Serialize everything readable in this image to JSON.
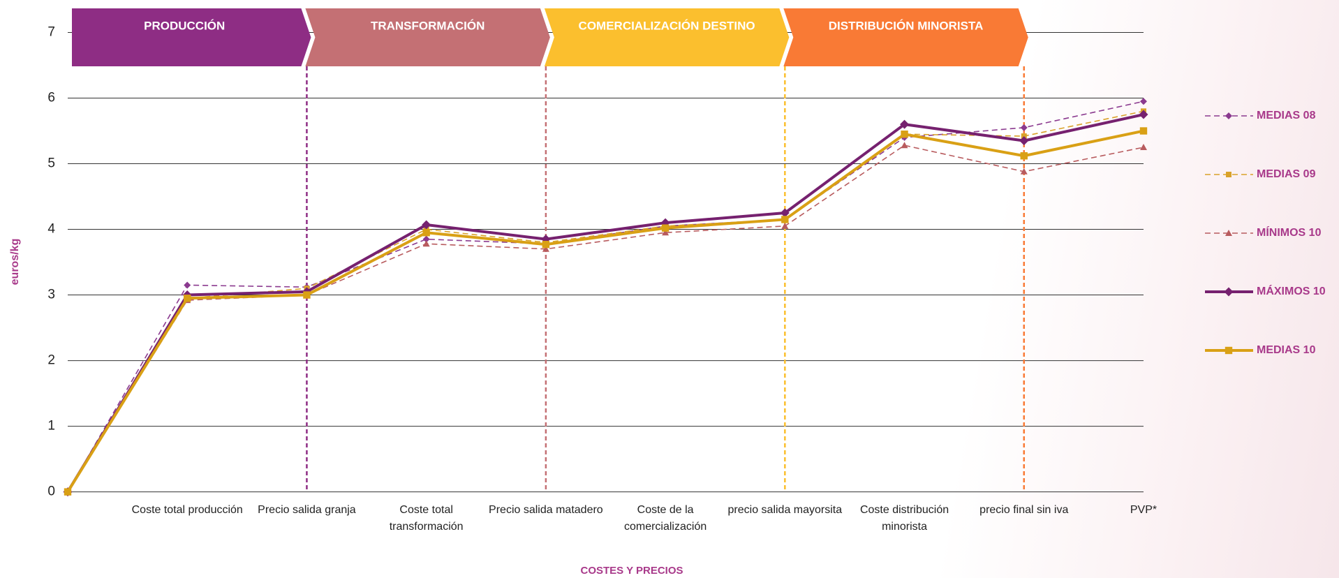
{
  "chart_data": {
    "type": "line",
    "ylabel": "euros/kg",
    "xlabel": "COSTES Y PRECIOS",
    "stages": [
      {
        "name": "PRODUCCIÓN",
        "color": "#8e2d84"
      },
      {
        "name": "TRANSFORMACIÓN",
        "color": "#c47074"
      },
      {
        "name": "COMERCIALIZACIÓN DESTINO",
        "color": "#fbbf2e"
      },
      {
        "name": "DISTRIBUCIÓN MINORISTA",
        "color": "#f97a35"
      }
    ],
    "categories": [
      null,
      "Coste total producción",
      "Precio salida granja",
      "Coste total transformación",
      "Precio salida matadero",
      "Coste de la comercialización",
      "precio salida mayorsita",
      "Coste distribución minorista",
      "precio final sin iva",
      "PVP*"
    ],
    "series": [
      {
        "name": "MEDIAS 08",
        "color": "#8b3a8f",
        "dashed": true,
        "marker": "diamond",
        "values": [
          0,
          3.15,
          3.12,
          3.85,
          3.78,
          4.05,
          4.15,
          5.4,
          5.55,
          5.95
        ]
      },
      {
        "name": "MEDIAS 09",
        "color": "#d9a22a",
        "dashed": true,
        "marker": "square",
        "values": [
          0,
          2.95,
          3.1,
          4.0,
          3.8,
          4.05,
          4.15,
          5.45,
          5.42,
          5.8
        ]
      },
      {
        "name": "MÍNIMOS 10",
        "color": "#b85b5e",
        "dashed": true,
        "marker": "triangle",
        "values": [
          0,
          2.92,
          3.0,
          3.78,
          3.7,
          3.95,
          4.05,
          5.28,
          4.88,
          5.25
        ]
      },
      {
        "name": "MÁXIMOS 10",
        "color": "#76216f",
        "dashed": false,
        "marker": "diamond",
        "values": [
          0,
          3.0,
          3.05,
          4.07,
          3.85,
          4.1,
          4.25,
          5.6,
          5.35,
          5.75
        ]
      },
      {
        "name": "MEDIAS 10",
        "color": "#d9a015",
        "dashed": false,
        "marker": "square",
        "values": [
          0,
          2.95,
          3.0,
          3.95,
          3.77,
          4.02,
          4.15,
          5.45,
          5.12,
          5.5
        ]
      }
    ],
    "ylim": [
      0,
      7
    ],
    "yticks": [
      0,
      1,
      2,
      3,
      4,
      5,
      6,
      7
    ],
    "grid": true
  }
}
